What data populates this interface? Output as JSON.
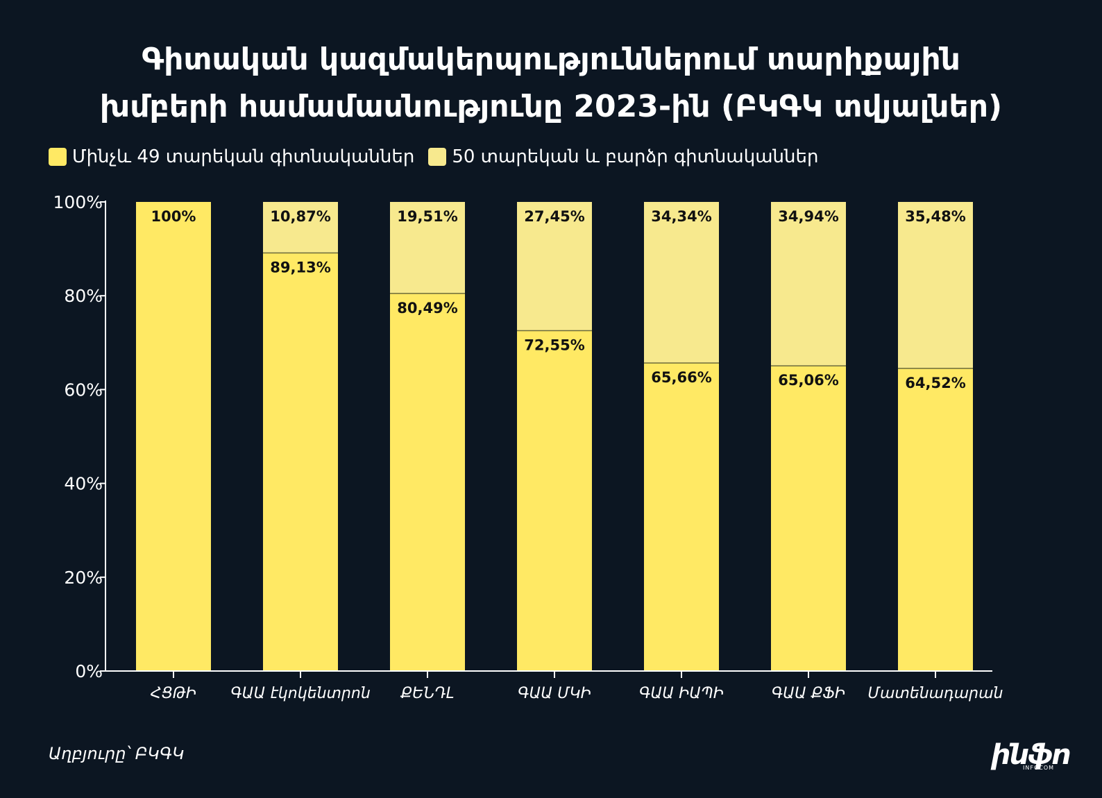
{
  "title": {
    "line1": "Գիտական կազմակերպություններում տարիքային",
    "line2": "խմբերի համամասնությունը 2023-ին (ԲԿԳԿ տվյալներ)"
  },
  "legend": [
    {
      "label": "Մինչև 49 տարեկան գիտնականներ",
      "color": "#ffe964"
    },
    {
      "label": "50 տարեկան և բարձր գիտնականներ",
      "color": "#f7e98e"
    }
  ],
  "source": "Աղբյուրը՝ ԲԿԳԿ",
  "logo": {
    "text": "ինֆո",
    "sub": "INFOCOM"
  },
  "chart_data": {
    "type": "bar",
    "stacked": true,
    "categories": [
      "ՀՑԹԻ",
      "ԳԱԱ էկոկենտրոն",
      "ՔԵՆԴԼ",
      "ԳԱԱ ՄԿԻ",
      "ԳԱԱ ԻԱՊԻ",
      "ԳԱԱ ՔՖԻ",
      "Մատենադարան"
    ],
    "series": [
      {
        "name": "Մինչև 49 տարեկան գիտնականներ",
        "color": "#ffe964",
        "values": [
          100,
          89.13,
          80.49,
          72.55,
          65.66,
          65.06,
          64.52
        ],
        "labels": [
          "100%",
          "89,13%",
          "80,49%",
          "72,55%",
          "65,66%",
          "65,06%",
          "64,52%"
        ]
      },
      {
        "name": "50 տարեկան և բարձր գիտնականներ",
        "color": "#f7e98e",
        "values": [
          0,
          10.87,
          19.51,
          27.45,
          34.34,
          34.94,
          35.48
        ],
        "labels": [
          "",
          "10,87%",
          "19,51%",
          "27,45%",
          "34,34%",
          "34,94%",
          "35,48%"
        ]
      }
    ],
    "ylim": [
      0,
      100
    ],
    "yticks": [
      "0%",
      "20%",
      "40%",
      "60%",
      "80%",
      "100%"
    ],
    "ytick_values": [
      0,
      20,
      40,
      60,
      80,
      100
    ],
    "grid": false,
    "legend_position": "top-left"
  }
}
